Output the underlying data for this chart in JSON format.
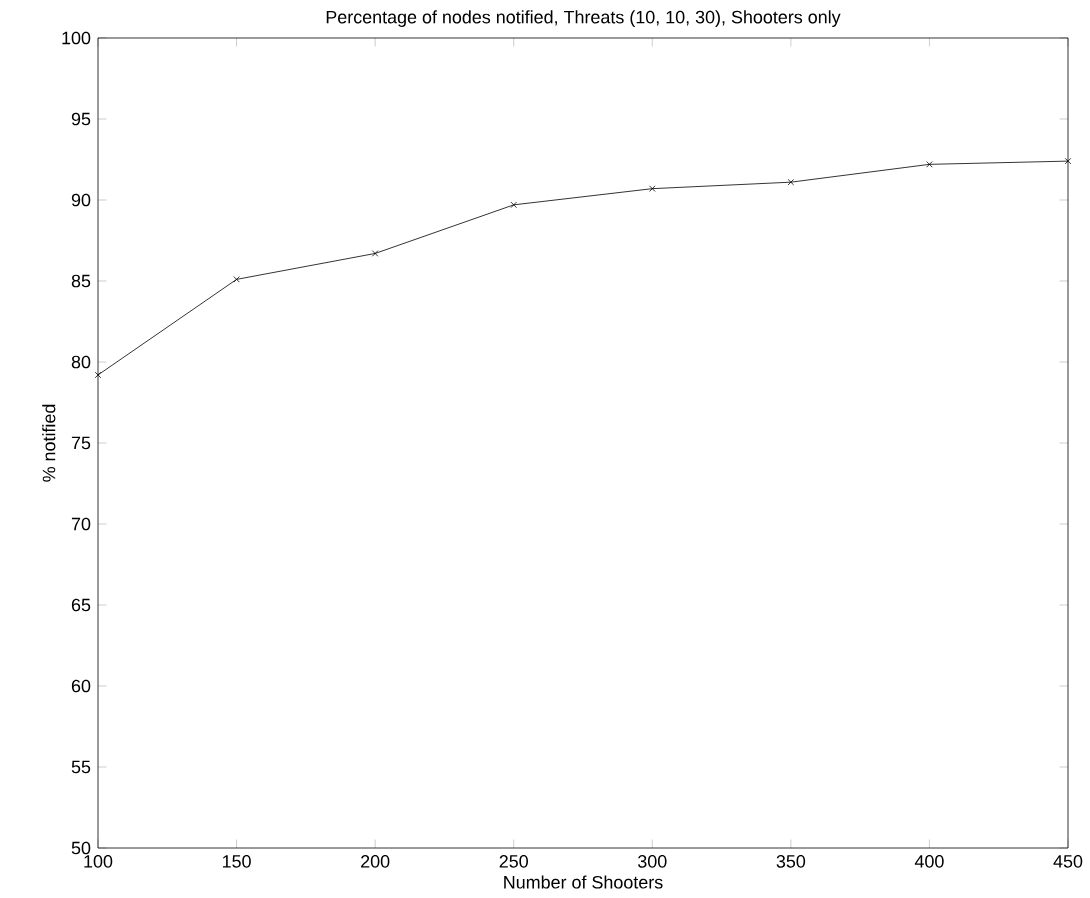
{
  "chart_data": {
    "type": "line",
    "title": "Percentage of nodes notified, Threats (10, 10, 30), Shooters only",
    "xlabel": "Number of Shooters",
    "ylabel": "% notified",
    "x": [
      100,
      150,
      200,
      250,
      300,
      350,
      400,
      450
    ],
    "series": [
      {
        "color": "#000000",
        "values": [
          79.2,
          85.1,
          86.7,
          89.7,
          90.7,
          91.1,
          92.2,
          92.4
        ]
      }
    ],
    "xlim": [
      100,
      450
    ],
    "xticks": [
      100,
      150,
      200,
      250,
      300,
      350,
      400,
      450
    ],
    "ylim": [
      50,
      100
    ],
    "yticks": [
      50,
      55,
      60,
      65,
      70,
      75,
      80,
      85,
      90,
      95,
      100
    ],
    "marker": "cross",
    "line_style": "solid"
  }
}
